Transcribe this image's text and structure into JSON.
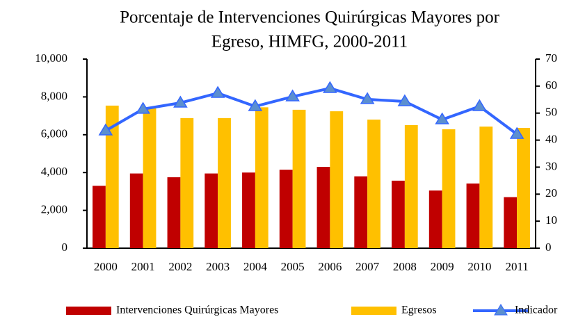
{
  "chart_data": {
    "type": "bar_line",
    "title": "Porcentaje de Intervenciones Quirúrgicas Mayores por Egreso, HIMFG, 2000-2011",
    "categories": [
      "2000",
      "2001",
      "2002",
      "2003",
      "2004",
      "2005",
      "2006",
      "2007",
      "2008",
      "2009",
      "2010",
      "2011"
    ],
    "series": [
      {
        "name": "Intervenciones Quirúrgicas Mayores",
        "type": "bar",
        "color": "#c00000",
        "values": [
          3300,
          3950,
          3750,
          3950,
          4000,
          4150,
          4300,
          3800,
          3570,
          3050,
          3420,
          2700
        ]
      },
      {
        "name": "Egresos",
        "type": "bar",
        "color": "#ffc000",
        "values": [
          7540,
          7400,
          6880,
          6880,
          7450,
          7320,
          7240,
          6800,
          6510,
          6290,
          6430,
          6360
        ]
      },
      {
        "name": "Indicador",
        "type": "line",
        "axis": "y2",
        "color": "#3366ff",
        "values": [
          43.5,
          51.5,
          53.8,
          57.4,
          52.5,
          56.1,
          59.2,
          55.1,
          54.3,
          47.6,
          52.5,
          42.2
        ]
      }
    ],
    "ylim": [
      0,
      10000
    ],
    "yticks": [
      0,
      {
        "value": 2000,
        "label": "2,000"
      },
      {
        "value": 4000,
        "label": "4,000"
      },
      {
        "value": 6000,
        "label": "6,000"
      },
      {
        "value": 8000,
        "label": "8,000"
      },
      {
        "value": 10000,
        "label": "10,000"
      }
    ],
    "y2lim": [
      0,
      70
    ],
    "y2ticks": [
      0,
      10,
      20,
      30,
      40,
      50,
      60,
      70
    ],
    "legend": "bottom"
  }
}
